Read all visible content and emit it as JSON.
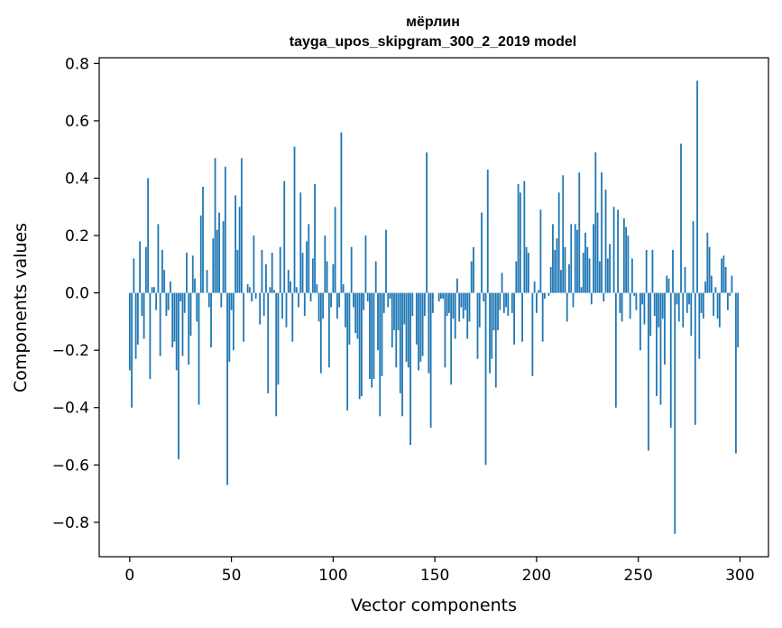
{
  "chart_data": {
    "type": "bar",
    "title": "мёрлин",
    "subtitle": "tayga_upos_skipgram_300_2_2019 model",
    "xlabel": "Vector components",
    "ylabel": "Components values",
    "xlim": [
      -15,
      314
    ],
    "ylim": [
      -0.92,
      0.82
    ],
    "x_ticks": [
      0,
      50,
      100,
      150,
      200,
      250,
      300
    ],
    "y_ticks": [
      -0.8,
      -0.6,
      -0.4,
      -0.2,
      0.0,
      0.2,
      0.4,
      0.6,
      0.8
    ],
    "x_tick_labels": [
      "0",
      "50",
      "100",
      "150",
      "200",
      "250",
      "300"
    ],
    "y_tick_labels": [
      "−0.8",
      "−0.6",
      "−0.4",
      "−0.2",
      "0.0",
      "0.2",
      "0.4",
      "0.6",
      "0.8"
    ],
    "bar_color": "#1f77b4",
    "grid": false,
    "x": "components 0..299 (index)",
    "values": [
      -0.27,
      -0.4,
      0.12,
      -0.23,
      -0.18,
      0.18,
      -0.08,
      -0.16,
      0.16,
      0.4,
      -0.3,
      0.02,
      0.02,
      -0.06,
      0.24,
      -0.22,
      0.15,
      0.08,
      -0.08,
      -0.06,
      0.04,
      -0.19,
      -0.17,
      -0.27,
      -0.58,
      -0.03,
      -0.22,
      -0.07,
      0.14,
      -0.25,
      -0.15,
      0.13,
      0.05,
      -0.1,
      -0.39,
      0.27,
      0.37,
      0.0,
      0.08,
      -0.05,
      -0.19,
      0.19,
      0.47,
      0.22,
      0.28,
      -0.05,
      0.25,
      0.44,
      -0.67,
      -0.24,
      -0.06,
      -0.2,
      0.34,
      0.15,
      0.3,
      0.47,
      -0.17,
      0.0,
      0.03,
      0.02,
      -0.03,
      0.2,
      -0.02,
      0.0,
      -0.11,
      0.15,
      -0.08,
      0.1,
      -0.35,
      0.02,
      0.14,
      0.01,
      -0.43,
      -0.32,
      0.16,
      -0.09,
      0.39,
      -0.12,
      0.08,
      0.04,
      -0.17,
      0.51,
      0.02,
      -0.05,
      0.35,
      0.14,
      -0.08,
      0.18,
      0.24,
      -0.03,
      0.12,
      0.38,
      0.03,
      -0.1,
      -0.28,
      -0.09,
      0.2,
      0.11,
      -0.26,
      -0.05,
      0.1,
      0.3,
      -0.09,
      -0.05,
      0.56,
      0.03,
      -0.12,
      -0.41,
      -0.18,
      0.16,
      -0.05,
      -0.14,
      -0.16,
      -0.37,
      -0.36,
      -0.06,
      0.2,
      -0.03,
      -0.3,
      -0.33,
      -0.3,
      0.11,
      -0.2,
      -0.43,
      -0.29,
      -0.07,
      0.22,
      -0.05,
      -0.02,
      -0.19,
      -0.13,
      -0.26,
      -0.13,
      -0.35,
      -0.43,
      -0.11,
      -0.24,
      -0.26,
      -0.53,
      -0.08,
      0.0,
      -0.18,
      -0.27,
      -0.24,
      -0.22,
      -0.08,
      0.49,
      -0.28,
      -0.47,
      -0.07,
      0.0,
      0.0,
      -0.03,
      -0.02,
      -0.02,
      -0.26,
      -0.08,
      -0.07,
      -0.32,
      -0.09,
      -0.16,
      0.05,
      -0.1,
      -0.05,
      -0.09,
      -0.06,
      -0.16,
      -0.1,
      0.11,
      0.16,
      0.0,
      -0.23,
      -0.12,
      0.28,
      -0.03,
      -0.6,
      0.43,
      -0.28,
      -0.23,
      -0.13,
      -0.33,
      -0.13,
      -0.06,
      0.07,
      -0.07,
      -0.05,
      -0.08,
      0.0,
      -0.07,
      -0.18,
      0.11,
      0.38,
      0.35,
      -0.17,
      0.39,
      0.16,
      0.14,
      0.0,
      -0.29,
      0.04,
      -0.07,
      0.01,
      0.29,
      -0.17,
      -0.02,
      0.0,
      -0.01,
      0.09,
      0.24,
      0.15,
      0.19,
      0.35,
      0.08,
      0.41,
      0.16,
      -0.1,
      0.1,
      0.24,
      -0.05,
      0.24,
      0.22,
      0.42,
      0.02,
      0.14,
      0.21,
      0.16,
      0.12,
      -0.04,
      0.24,
      0.49,
      0.28,
      0.11,
      0.42,
      -0.03,
      0.36,
      0.12,
      0.17,
      0.0,
      0.3,
      -0.4,
      0.29,
      -0.07,
      -0.1,
      0.26,
      0.23,
      0.2,
      -0.09,
      0.12,
      -0.01,
      -0.06,
      0.0,
      -0.2,
      -0.04,
      -0.11,
      0.15,
      -0.55,
      -0.15,
      0.15,
      -0.08,
      -0.36,
      -0.12,
      -0.39,
      -0.09,
      -0.25,
      0.06,
      0.05,
      -0.47,
      0.15,
      -0.84,
      -0.04,
      -0.1,
      0.52,
      -0.12,
      0.09,
      -0.07,
      -0.04,
      -0.15,
      0.25,
      -0.46,
      0.74,
      -0.23,
      -0.07,
      -0.09,
      0.04,
      0.21,
      0.16,
      0.06,
      -0.08,
      0.02,
      -0.09,
      -0.12,
      0.12,
      0.13,
      0.09,
      -0.06,
      -0.01,
      0.06,
      0.0,
      -0.56,
      -0.19
    ]
  }
}
